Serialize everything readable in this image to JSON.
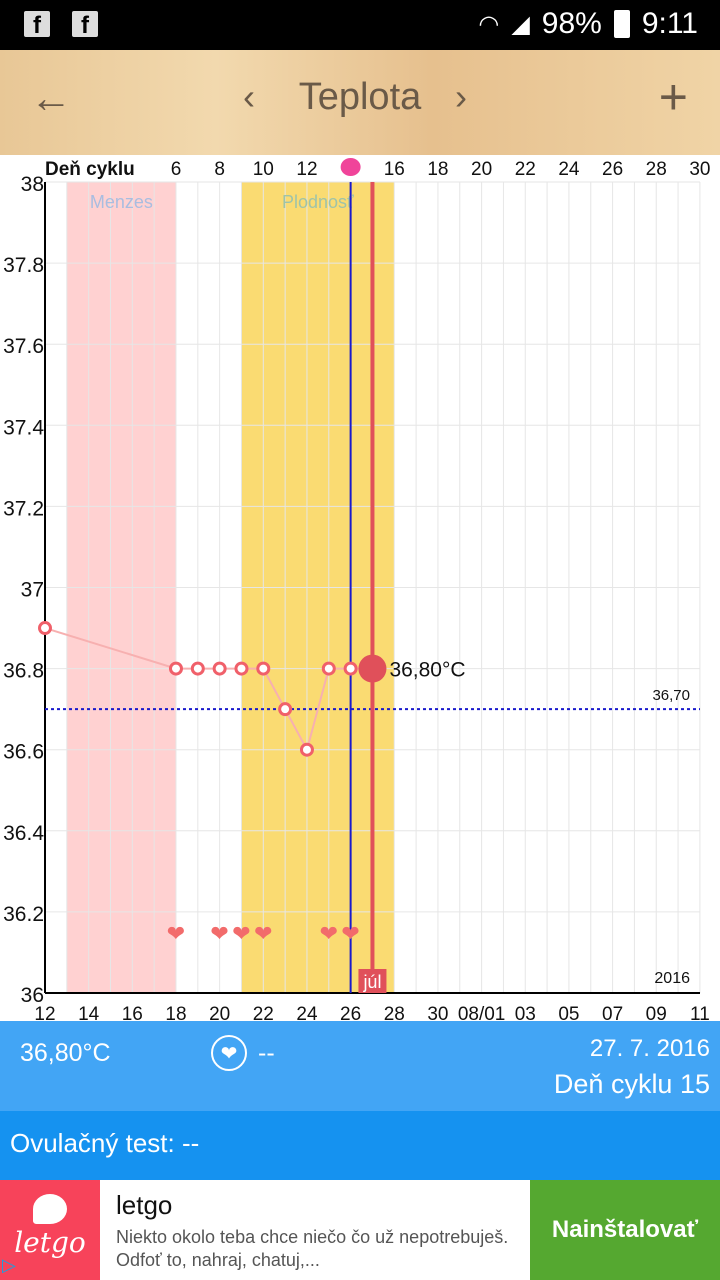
{
  "status": {
    "battery": "98%",
    "time": "9:11",
    "notif_icons": [
      "facebook-icon",
      "facebook-icon"
    ]
  },
  "appbar": {
    "title": "Teplota",
    "back": "←",
    "prev": "‹",
    "next": "›",
    "add": "+"
  },
  "chart_data": {
    "type": "line",
    "title": "Teplota",
    "top_axis_label": "Deň cyklu",
    "top_ticks": [
      "6",
      "8",
      "10",
      "12",
      "14",
      "16",
      "18",
      "20",
      "22",
      "24",
      "26",
      "28",
      "30"
    ],
    "x_tick_labels": [
      "12",
      "14",
      "16",
      "18",
      "20",
      "22",
      "24",
      "26",
      "28",
      "30",
      "08/01",
      "03",
      "05",
      "07",
      "09",
      "11"
    ],
    "x_start": "2016-07-12",
    "x_end": "2016-08-11",
    "y_ticks": [
      "36",
      "36.2",
      "36.4",
      "36.6",
      "36.8",
      "37",
      "37.2",
      "37.4",
      "37.6",
      "37.8",
      "38"
    ],
    "ylim": [
      36,
      38
    ],
    "points": [
      {
        "day": 0,
        "value": 36.9
      },
      {
        "day": 6,
        "value": 36.8
      },
      {
        "day": 7,
        "value": 36.8
      },
      {
        "day": 8,
        "value": 36.8
      },
      {
        "day": 9,
        "value": 36.8
      },
      {
        "day": 10,
        "value": 36.8
      },
      {
        "day": 11,
        "value": 36.7
      },
      {
        "day": 12,
        "value": 36.6
      },
      {
        "day": 13,
        "value": 36.8
      },
      {
        "day": 14,
        "value": 36.8
      },
      {
        "day": 15,
        "value": 36.8
      }
    ],
    "selected_day": 15,
    "selected_label": "36,80°C",
    "hearts_days": [
      6,
      8,
      9,
      10,
      13,
      14
    ],
    "bands": [
      {
        "label": "Menzes",
        "from": 1,
        "to": 6,
        "color": "#ffd1d1",
        "text_color": "#a9bde0"
      },
      {
        "label": "Plodnosť",
        "from": 9,
        "to": 16,
        "color": "#fadb72",
        "text_color": "#9fc3a8"
      }
    ],
    "ovulation_day": 14,
    "coverline": {
      "value": 36.7,
      "label": "36,70"
    },
    "month_label": "júl",
    "year_label": "2016",
    "colors": {
      "line": "#f7b0b0",
      "point": "#f0606a",
      "selected": "#e0505a",
      "blue": "#1a1acc",
      "today": "#e0505a"
    }
  },
  "info": {
    "temperature": "36,80°C",
    "intercourse": "--",
    "date": "27. 7. 2016",
    "cycle_day": "Deň cyklu 15"
  },
  "ovulation_test": "Ovulačný test: --",
  "ad": {
    "brand": "letgo",
    "name": "letgo",
    "description": "Niekto okolo teba chce niečo čo už nepotrebuješ. Odfoť to, nahraj, chatuj,...",
    "install": "Nainštalovať"
  }
}
